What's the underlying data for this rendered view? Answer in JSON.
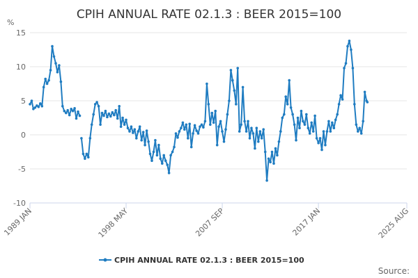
{
  "chart_data": {
    "type": "line",
    "title": "CPIH ANNUAL RATE 02.1.3 : BEER 2015=100",
    "ylabel": "%",
    "ylim": [
      -10,
      15
    ],
    "yticks": [
      15,
      10,
      5,
      0,
      -5,
      -10
    ],
    "xlim": [
      "1989-01",
      "2025-08"
    ],
    "xtick_labels": [
      "1989 JAN",
      "1998 MAY",
      "2007 SEP",
      "2017 JAN",
      "2025 AUG"
    ],
    "xtick_dates": [
      "1989-01",
      "1998-05",
      "2007-09",
      "2017-01",
      "2025-08"
    ],
    "legend": "CPIH ANNUAL RATE 02.1.3 : BEER 2015=100",
    "source": "Source:",
    "color": "#1f7cc1",
    "series": [
      {
        "name": "CPIH ANNUAL RATE 02.1.3 : BEER 2015=100",
        "points": [
          [
            "1989-01",
            4.5
          ],
          [
            "1989-03",
            5.0
          ],
          [
            "1989-05",
            3.8
          ],
          [
            "1989-07",
            4.0
          ],
          [
            "1989-09",
            4.3
          ],
          [
            "1989-11",
            4.1
          ],
          [
            "1990-01",
            4.6
          ],
          [
            "1990-03",
            4.2
          ],
          [
            "1990-05",
            7.0
          ],
          [
            "1990-07",
            8.2
          ],
          [
            "1990-09",
            7.5
          ],
          [
            "1990-11",
            8.0
          ],
          [
            "1991-01",
            9.5
          ],
          [
            "1991-03",
            13.0
          ],
          [
            "1991-05",
            11.5
          ],
          [
            "1991-07",
            10.5
          ],
          [
            "1991-09",
            9.2
          ],
          [
            "1991-11",
            10.2
          ],
          [
            "1992-01",
            7.8
          ],
          [
            "1992-03",
            4.2
          ],
          [
            "1992-05",
            3.5
          ],
          [
            "1992-07",
            3.2
          ],
          [
            "1992-09",
            3.6
          ],
          [
            "1992-11",
            2.9
          ],
          [
            "1993-01",
            3.8
          ],
          [
            "1993-03",
            3.5
          ],
          [
            "1993-05",
            3.9
          ],
          [
            "1993-07",
            2.4
          ],
          [
            "1993-09",
            3.4
          ],
          [
            "1993-11",
            2.8
          ],
          [
            "1994-01",
            -0.5
          ],
          [
            "1994-03",
            -2.8
          ],
          [
            "1994-05",
            -3.5
          ],
          [
            "1994-07",
            -2.8
          ],
          [
            "1994-09",
            -3.3
          ],
          [
            "1994-11",
            -0.5
          ],
          [
            "1995-01",
            1.5
          ],
          [
            "1995-03",
            3.0
          ],
          [
            "1995-05",
            4.5
          ],
          [
            "1995-07",
            4.8
          ],
          [
            "1995-09",
            4.2
          ],
          [
            "1995-11",
            1.5
          ],
          [
            "1996-01",
            3.2
          ],
          [
            "1996-03",
            2.8
          ],
          [
            "1996-05",
            3.5
          ],
          [
            "1996-07",
            2.6
          ],
          [
            "1996-09",
            3.1
          ],
          [
            "1996-11",
            2.7
          ],
          [
            "1997-01",
            3.3
          ],
          [
            "1997-03",
            2.9
          ],
          [
            "1997-05",
            3.6
          ],
          [
            "1997-07",
            2.4
          ],
          [
            "1997-09",
            4.2
          ],
          [
            "1997-11",
            1.2
          ],
          [
            "1998-01",
            2.5
          ],
          [
            "1998-03",
            1.5
          ],
          [
            "1998-05",
            2.2
          ],
          [
            "1998-07",
            1.0
          ],
          [
            "1998-09",
            0.5
          ],
          [
            "1998-11",
            1.2
          ],
          [
            "1999-01",
            0.3
          ],
          [
            "1999-03",
            0.8
          ],
          [
            "1999-05",
            -0.5
          ],
          [
            "1999-07",
            0.5
          ],
          [
            "1999-09",
            1.2
          ],
          [
            "1999-11",
            -0.8
          ],
          [
            "2000-01",
            0.4
          ],
          [
            "2000-03",
            -1.5
          ],
          [
            "2000-05",
            0.6
          ],
          [
            "2000-07",
            -1.0
          ],
          [
            "2000-09",
            -2.8
          ],
          [
            "2000-11",
            -3.8
          ],
          [
            "2001-01",
            -2.5
          ],
          [
            "2001-03",
            -0.8
          ],
          [
            "2001-05",
            -3.0
          ],
          [
            "2001-07",
            -1.5
          ],
          [
            "2001-09",
            -3.5
          ],
          [
            "2001-11",
            -4.2
          ],
          [
            "2002-01",
            -3.0
          ],
          [
            "2002-03",
            -3.8
          ],
          [
            "2002-05",
            -4.4
          ],
          [
            "2002-07",
            -5.6
          ],
          [
            "2002-09",
            -3.0
          ],
          [
            "2002-11",
            -2.5
          ],
          [
            "2003-01",
            -1.8
          ],
          [
            "2003-03",
            0.2
          ],
          [
            "2003-05",
            -0.4
          ],
          [
            "2003-07",
            0.5
          ],
          [
            "2003-09",
            1.0
          ],
          [
            "2003-11",
            1.8
          ],
          [
            "2004-01",
            0.8
          ],
          [
            "2004-03",
            1.5
          ],
          [
            "2004-05",
            -0.5
          ],
          [
            "2004-07",
            1.6
          ],
          [
            "2004-09",
            -1.8
          ],
          [
            "2004-11",
            0.2
          ],
          [
            "2005-01",
            1.4
          ],
          [
            "2005-03",
            0.6
          ],
          [
            "2005-05",
            0.2
          ],
          [
            "2005-07",
            1.2
          ],
          [
            "2005-09",
            1.5
          ],
          [
            "2005-11",
            1.1
          ],
          [
            "2006-01",
            2.0
          ],
          [
            "2006-03",
            7.5
          ],
          [
            "2006-05",
            4.5
          ],
          [
            "2006-07",
            1.5
          ],
          [
            "2006-09",
            3.2
          ],
          [
            "2006-11",
            1.8
          ],
          [
            "2007-01",
            3.5
          ],
          [
            "2007-03",
            -1.5
          ],
          [
            "2007-05",
            1.2
          ],
          [
            "2007-07",
            2.0
          ],
          [
            "2007-09",
            0.5
          ],
          [
            "2007-11",
            -1.0
          ],
          [
            "2008-01",
            0.8
          ],
          [
            "2008-03",
            3.0
          ],
          [
            "2008-05",
            5.0
          ],
          [
            "2008-07",
            9.5
          ],
          [
            "2008-09",
            8.0
          ],
          [
            "2008-11",
            6.5
          ],
          [
            "2009-01",
            4.5
          ],
          [
            "2009-03",
            9.8
          ],
          [
            "2009-05",
            0.5
          ],
          [
            "2009-07",
            1.5
          ],
          [
            "2009-09",
            7.0
          ],
          [
            "2009-11",
            2.0
          ],
          [
            "2010-01",
            0.5
          ],
          [
            "2010-03",
            2.0
          ],
          [
            "2010-05",
            -0.5
          ],
          [
            "2010-07",
            1.0
          ],
          [
            "2010-09",
            0.2
          ],
          [
            "2010-11",
            -2.0
          ],
          [
            "2011-01",
            1.0
          ],
          [
            "2011-03",
            -1.0
          ],
          [
            "2011-05",
            0.5
          ],
          [
            "2011-07",
            -0.5
          ],
          [
            "2011-09",
            0.8
          ],
          [
            "2011-11",
            -2.5
          ],
          [
            "2012-01",
            -6.7
          ],
          [
            "2012-03",
            -3.5
          ],
          [
            "2012-05",
            -4.0
          ],
          [
            "2012-07",
            -2.5
          ],
          [
            "2012-09",
            -4.2
          ],
          [
            "2012-11",
            -2.0
          ],
          [
            "2013-01",
            -3.0
          ],
          [
            "2013-03",
            -1.0
          ],
          [
            "2013-05",
            0.5
          ],
          [
            "2013-07",
            2.5
          ],
          [
            "2013-09",
            3.0
          ],
          [
            "2013-11",
            5.6
          ],
          [
            "2014-01",
            4.5
          ],
          [
            "2014-03",
            8.0
          ],
          [
            "2014-05",
            4.0
          ],
          [
            "2014-07",
            3.0
          ],
          [
            "2014-09",
            1.5
          ],
          [
            "2014-11",
            -0.8
          ],
          [
            "2015-01",
            2.5
          ],
          [
            "2015-03",
            1.0
          ],
          [
            "2015-05",
            3.5
          ],
          [
            "2015-07",
            2.0
          ],
          [
            "2015-09",
            1.5
          ],
          [
            "2015-11",
            3.0
          ],
          [
            "2016-01",
            1.0
          ],
          [
            "2016-03",
            0.2
          ],
          [
            "2016-05",
            1.8
          ],
          [
            "2016-07",
            0.5
          ],
          [
            "2016-09",
            2.8
          ],
          [
            "2016-11",
            -0.5
          ],
          [
            "2017-01",
            -1.2
          ],
          [
            "2017-03",
            -0.5
          ],
          [
            "2017-05",
            -2.2
          ],
          [
            "2017-07",
            0.5
          ],
          [
            "2017-09",
            -1.5
          ],
          [
            "2017-11",
            0.5
          ],
          [
            "2018-01",
            2.0
          ],
          [
            "2018-03",
            0.5
          ],
          [
            "2018-05",
            1.8
          ],
          [
            "2018-07",
            1.0
          ],
          [
            "2018-09",
            2.2
          ],
          [
            "2018-11",
            3.0
          ],
          [
            "2019-01",
            4.5
          ],
          [
            "2019-03",
            5.8
          ],
          [
            "2019-05",
            5.2
          ],
          [
            "2019-07",
            9.8
          ],
          [
            "2019-09",
            10.5
          ],
          [
            "2019-11",
            13.0
          ],
          [
            "2020-01",
            13.8
          ],
          [
            "2020-03",
            12.5
          ],
          [
            "2020-05",
            9.8
          ],
          [
            "2020-07",
            4.5
          ],
          [
            "2020-09",
            1.5
          ],
          [
            "2020-11",
            0.5
          ],
          [
            "2021-01",
            1.0
          ],
          [
            "2021-03",
            0.2
          ],
          [
            "2021-05",
            2.0
          ],
          [
            "2021-07",
            6.3
          ],
          [
            "2021-09",
            5.0
          ],
          [
            "2021-10",
            4.8
          ]
        ]
      }
    ]
  }
}
